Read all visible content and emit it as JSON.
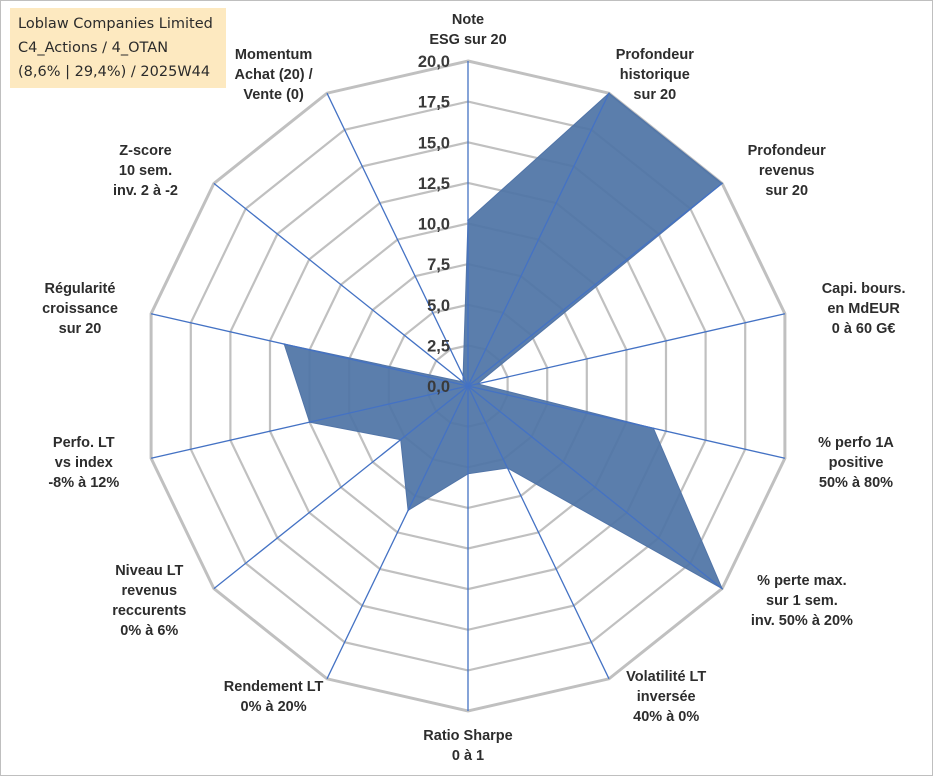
{
  "title_box": {
    "line1": "Loblaw Companies Limited",
    "line2": "C4_Actions / 4_OTAN",
    "line3": "(8,6% | 29,4%) / 2025W44"
  },
  "chart_data": {
    "type": "radar",
    "rlim": [
      0,
      20
    ],
    "ticks": [
      "0,0",
      "2,5",
      "5,0",
      "7,5",
      "10,0",
      "12,5",
      "15,0",
      "17,5",
      "20,0"
    ],
    "tick_values": [
      0,
      2.5,
      5,
      7.5,
      10,
      12.5,
      15,
      17.5,
      20
    ],
    "axes": [
      {
        "label": [
          "Note",
          "ESG sur 20"
        ]
      },
      {
        "label": [
          "Profondeur",
          "historique",
          "sur 20"
        ]
      },
      {
        "label": [
          "Profondeur",
          "revenus",
          "sur 20"
        ]
      },
      {
        "label": [
          "Capi. bours.",
          "en MdEUR",
          "0 à 60 G€"
        ]
      },
      {
        "label": [
          "% perfo 1A",
          "positive",
          "50% à 80%"
        ]
      },
      {
        "label": [
          "% perte max.",
          "sur 1 sem.",
          "inv. 50% à 20%"
        ]
      },
      {
        "label": [
          "Volatilité LT",
          "inversée",
          "40% à 0%"
        ]
      },
      {
        "label": [
          "Ratio Sharpe",
          "0 à 1"
        ]
      },
      {
        "label": [
          "Rendement LT",
          "0% à 20%"
        ]
      },
      {
        "label": [
          "Niveau LT",
          "revenus",
          "reccurents",
          "0% à 6%"
        ]
      },
      {
        "label": [
          "Perfo. LT",
          "vs index",
          "-8% à 12%"
        ]
      },
      {
        "label": [
          "Régularité",
          "croissance",
          "sur 20"
        ]
      },
      {
        "label": [
          "Z-score",
          "10 sem.",
          "inv. 2 à -2"
        ]
      },
      {
        "label": [
          "Momentum",
          "Achat (20) /",
          "Vente (0)"
        ]
      }
    ],
    "series": [
      {
        "name": "Loblaw Companies Limited",
        "values": [
          10.2,
          20,
          20,
          0.6,
          11.7,
          20,
          5.6,
          5.4,
          8.5,
          5.3,
          10.0,
          11.6,
          0.4,
          0.7
        ]
      }
    ],
    "colors": {
      "fill": "#4f74a6",
      "stroke": "#5174a7",
      "grid": "#c0c0c0",
      "spoke": "#4472c4"
    }
  }
}
